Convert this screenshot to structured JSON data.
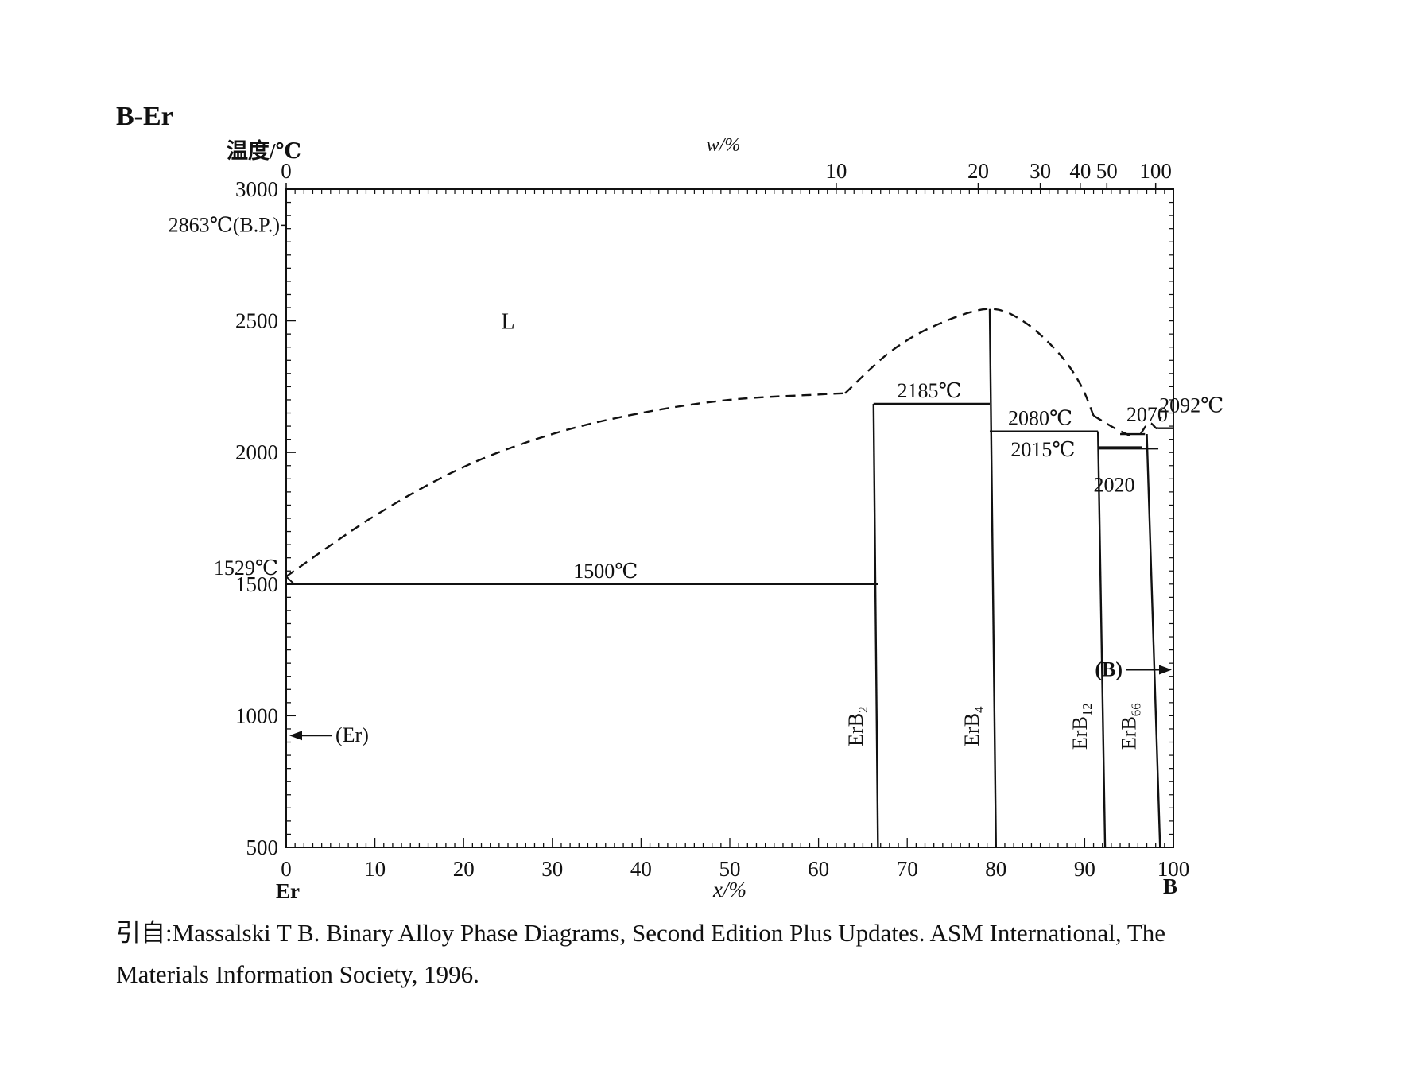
{
  "title": "B-Er",
  "citation": {
    "prefix": "引自:",
    "line1": "Massalski T B. Binary Alloy Phase Diagrams, Second Edition Plus Updates. ASM International, The",
    "line2": "Materials Information Society, 1996."
  },
  "chart_data": {
    "type": "phase-diagram",
    "system": "B-Er",
    "ylabel": "温度/℃",
    "xlabel": "x/%",
    "top_xlabel": "w/%",
    "xlim": [
      0,
      100
    ],
    "ylim": [
      500,
      3000
    ],
    "x_ticks": [
      0,
      10,
      20,
      30,
      40,
      50,
      60,
      70,
      80,
      90,
      100
    ],
    "y_ticks": [
      500,
      1000,
      1500,
      2000,
      2500,
      3000
    ],
    "top_ticks": [
      {
        "label": "0",
        "x": 0
      },
      {
        "label": "10",
        "x": 62
      },
      {
        "label": "20",
        "x": 78
      },
      {
        "label": "30",
        "x": 85
      },
      {
        "label": "40",
        "x": 89.5
      },
      {
        "label": "50",
        "x": 92.5
      },
      {
        "label": "100",
        "x": 98
      }
    ],
    "x_end_labels": {
      "left": "Er",
      "right": "B"
    },
    "boiling_point": {
      "label": "2863℃(B.P.)",
      "T": 2863
    },
    "regions": [
      {
        "label": "L",
        "x": 25,
        "T": 2500
      }
    ],
    "liquidus_dashed": [
      {
        "name": "liquidus-left",
        "points": [
          [
            0,
            1529
          ],
          [
            10,
            1760
          ],
          [
            20,
            1945
          ],
          [
            30,
            2070
          ],
          [
            40,
            2150
          ],
          [
            50,
            2200
          ],
          [
            60,
            2220
          ],
          [
            63,
            2225
          ]
        ]
      },
      {
        "name": "liquidus-erb4-dome",
        "points": [
          [
            63,
            2225
          ],
          [
            68,
            2380
          ],
          [
            73,
            2480
          ],
          [
            79,
            2545
          ],
          [
            83,
            2500
          ],
          [
            87,
            2380
          ],
          [
            89.5,
            2260
          ],
          [
            91,
            2140
          ]
        ]
      },
      {
        "name": "liquidus-right",
        "points": [
          [
            91,
            2140
          ],
          [
            93.5,
            2090
          ],
          [
            95.5,
            2058
          ]
        ]
      },
      {
        "name": "liquidus-boron",
        "points": [
          [
            96.3,
            2070
          ],
          [
            97,
            2105
          ],
          [
            97.5,
            2110
          ],
          [
            98.2,
            2092
          ],
          [
            98.6,
            2135
          ]
        ]
      }
    ],
    "isotherms": [
      {
        "T": 1500,
        "x1": 0,
        "x2": 66.7,
        "label": "1500℃",
        "lx": 36
      },
      {
        "T": 2185,
        "x1": 66.2,
        "x2": 79.3,
        "label": "2185℃",
        "lx": 72.5
      },
      {
        "T": 2080,
        "x1": 79.3,
        "x2": 91.5,
        "label": "2080℃",
        "lx": 85
      },
      {
        "T": 2015,
        "x1": 91.5,
        "x2": 98.3,
        "label": "2015℃",
        "lx": 85.3
      },
      {
        "T": 2070,
        "x1": 94,
        "x2": 96.8,
        "label": "2070",
        "lx": 94.7
      },
      {
        "T": 2020,
        "x1": 91.5,
        "x2": 96.5,
        "label": "2020",
        "lx": 91
      },
      {
        "T": 2092,
        "x1": 98.3,
        "x2": 100,
        "label": "2092℃",
        "lx": 98.4
      }
    ],
    "compounds": [
      {
        "label": "ErB",
        "sub": "2",
        "x_top": 66.2,
        "x_bot": 66.7,
        "T_top": 2185
      },
      {
        "label": "ErB",
        "sub": "4",
        "x_top": 79.3,
        "x_bot": 80,
        "T_top": 2545
      },
      {
        "label": "ErB",
        "sub": "12",
        "x_top": 91.5,
        "x_bot": 92.3,
        "T_top": 2080
      },
      {
        "label": "ErB",
        "sub": "66",
        "x_top": 97,
        "x_bot": 98.5,
        "T_top": 2070
      }
    ],
    "annotations": [
      {
        "label": "1529℃",
        "x": 0,
        "T": 1529
      },
      {
        "label": "(Er)",
        "x": 0,
        "T": 925,
        "arrow": "left"
      },
      {
        "label": "(B)",
        "x": 100,
        "T": 1175,
        "arrow": "right"
      }
    ]
  }
}
